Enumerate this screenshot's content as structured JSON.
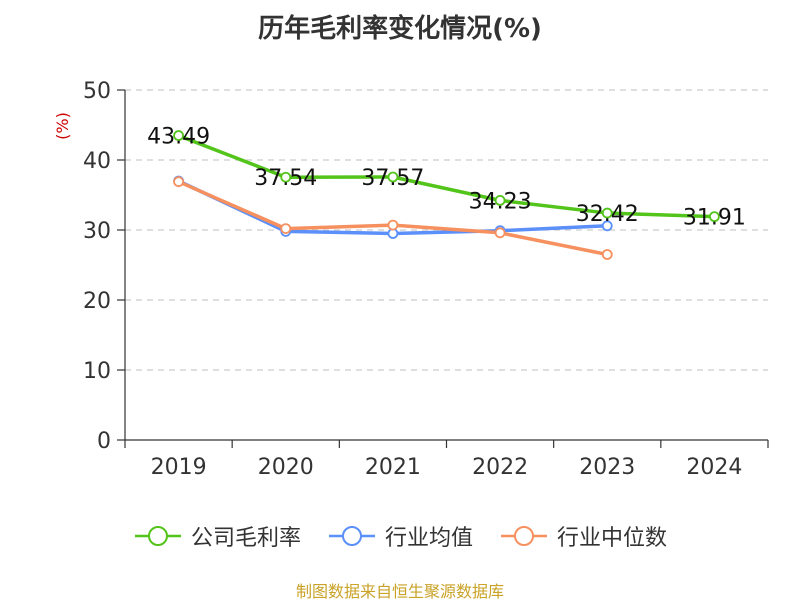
{
  "title": "历年毛利率变化情况(%)",
  "source_text": "制图数据来自恒生聚源数据库",
  "colors": {
    "axis": "#333333",
    "grid": "#cccccc",
    "unit": "#cc0000"
  },
  "chart_data": {
    "type": "line",
    "title": "历年毛利率变化情况(%)",
    "ylabel": "(%)",
    "xlabel": "",
    "categories": [
      "2019",
      "2020",
      "2021",
      "2022",
      "2023",
      "2024"
    ],
    "ylim": [
      0,
      50
    ],
    "yticks": [
      0,
      10,
      20,
      30,
      40,
      50
    ],
    "grid": true,
    "legend_position": "bottom",
    "series": [
      {
        "name": "公司毛利率",
        "color": "#52c41a",
        "values": [
          43.49,
          37.54,
          37.57,
          34.23,
          32.42,
          31.91
        ],
        "show_labels": true
      },
      {
        "name": "行业均值",
        "color": "#5b8ff9",
        "values": [
          37.0,
          29.8,
          29.5,
          29.9,
          30.6,
          null
        ],
        "show_labels": false
      },
      {
        "name": "行业中位数",
        "color": "#f6905f",
        "values": [
          36.9,
          30.2,
          30.7,
          29.6,
          26.5,
          null
        ],
        "show_labels": false
      }
    ]
  }
}
